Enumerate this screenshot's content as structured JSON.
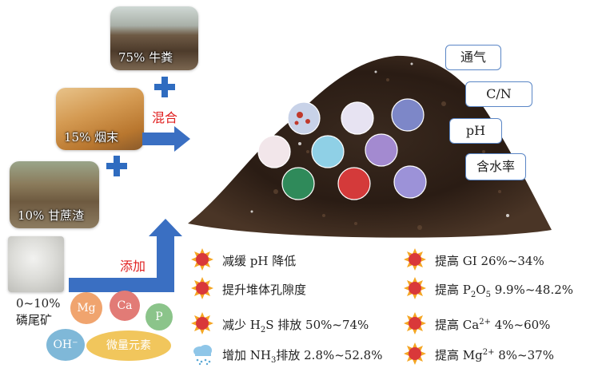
{
  "inputs": {
    "manure": "75% 牛粪",
    "tobacco": "15% 烟末",
    "bagasse": "10% 甘蔗渣",
    "tailings_pct": "0~10%",
    "tailings_name": "磷尾矿"
  },
  "arrows": {
    "mix": "混合",
    "add": "添加"
  },
  "elements": {
    "mg": "Mg",
    "ca": "Ca",
    "p": "P",
    "oh": "OH⁻",
    "trace": "微量元素"
  },
  "params": {
    "aeration": "通气",
    "cn": "C/N",
    "ph": "pH",
    "moisture": "含水率"
  },
  "effects_left": [
    {
      "pre": "减缓 pH 降低",
      "sub": "",
      "post": ""
    },
    {
      "pre": "提升堆体孔隙度",
      "sub": "",
      "post": ""
    },
    {
      "pre": "减少 H",
      "sub": "2",
      "post": "S 排放 50%~74%"
    },
    {
      "pre": "增加 NH",
      "sub": "3",
      "post": "排放 2.8%~52.8%"
    }
  ],
  "effects_right": [
    {
      "pre": "提高 GI 26%~34%"
    },
    {
      "pre": "提高 P",
      "sub1": "2",
      "mid": "O",
      "sub2": "5",
      "post": " 9.9%~48.2%"
    },
    {
      "pre": "提高 Ca",
      "sup": "2+",
      "post": " 4%~60%"
    },
    {
      "pre": "提高 Mg",
      "sup": "2+",
      "post": " 8%~37%"
    }
  ],
  "colors": {
    "arrow_blue": "#3a6fc2",
    "accent_red": "#e02020",
    "mg_bubble": "#f0a46e",
    "ca_bubble": "#e27b76",
    "p_bubble": "#8bc48a",
    "oh_bubble": "#7fb8d8",
    "trace_bubble": "#f1c65c"
  },
  "icons": {
    "increase": "sun-burst-icon",
    "increase_nh3": "rain-cloud-icon"
  }
}
